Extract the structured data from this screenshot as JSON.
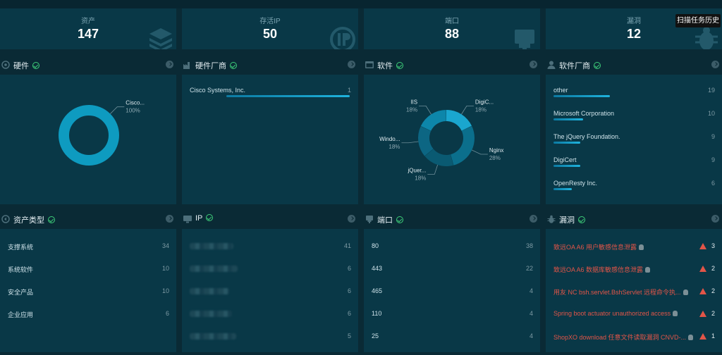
{
  "stats": [
    {
      "label": "资产",
      "value": "147",
      "icon": "layers-icon"
    },
    {
      "label": "存活IP",
      "value": "50",
      "icon": "ip-icon"
    },
    {
      "label": "端口",
      "value": "88",
      "icon": "port-icon"
    },
    {
      "label": "漏洞",
      "value": "12",
      "icon": "bug-icon"
    }
  ],
  "tooltip": "扫描任务历史",
  "panels": {
    "hardware": {
      "title": "硬件"
    },
    "hardware_vendor": {
      "title": "硬件厂商"
    },
    "software": {
      "title": "软件"
    },
    "software_vendor": {
      "title": "软件厂商"
    },
    "asset_type": {
      "title": "资产类型"
    },
    "ip": {
      "title": "IP"
    },
    "port": {
      "title": "端口"
    },
    "vuln": {
      "title": "漏洞"
    }
  },
  "hardware_chart": {
    "type": "donut",
    "slices": [
      {
        "label": "Cisco...",
        "value": 100,
        "value_label": "100%"
      }
    ],
    "colors": [
      "#0e9bc0"
    ]
  },
  "hardware_vendor_list": [
    {
      "label": "Cisco Systems, Inc.",
      "value": "1",
      "fraction": 1.0
    }
  ],
  "software_chart": {
    "type": "donut",
    "slices": [
      {
        "label": "DigiC...",
        "value": 18,
        "value_label": "18%"
      },
      {
        "label": "Nginx",
        "value": 28,
        "value_label": "28%"
      },
      {
        "label": "jQuer...",
        "value": 18,
        "value_label": "18%"
      },
      {
        "label": "Windo...",
        "value": 18,
        "value_label": "18%"
      },
      {
        "label": "IIS",
        "value": 18,
        "value_label": "18%"
      }
    ],
    "colors": [
      "#1aa6cf",
      "#0b6f8c",
      "#0a5a72",
      "#0c6683",
      "#0d86aa"
    ]
  },
  "software_vendor_list": [
    {
      "label": "other",
      "value": "19",
      "fraction": 1.0
    },
    {
      "label": "Microsoft Corporation",
      "value": "10",
      "fraction": 0.53
    },
    {
      "label": "The jQuery Foundation.",
      "value": "9",
      "fraction": 0.47
    },
    {
      "label": "DigiCert",
      "value": "9",
      "fraction": 0.47
    },
    {
      "label": "OpenResty Inc.",
      "value": "6",
      "fraction": 0.32
    }
  ],
  "asset_type_list": [
    {
      "label": "支撑系统",
      "value": "34"
    },
    {
      "label": "系统软件",
      "value": "10"
    },
    {
      "label": "安全产品",
      "value": "10"
    },
    {
      "label": "企业应用",
      "value": "6"
    }
  ],
  "ip_list": [
    {
      "value": "41"
    },
    {
      "value": "6"
    },
    {
      "value": "6"
    },
    {
      "value": "6"
    },
    {
      "value": "5"
    }
  ],
  "port_list": [
    {
      "label": "80",
      "value": "38"
    },
    {
      "label": "443",
      "value": "22"
    },
    {
      "label": "465",
      "value": "4"
    },
    {
      "label": "110",
      "value": "4"
    },
    {
      "label": "25",
      "value": "4"
    }
  ],
  "vuln_list": [
    {
      "label": "致远OA A6 用户敏感信息泄露",
      "value": "3"
    },
    {
      "label": "致远OA A6 数据库敏感信息泄露",
      "value": "2"
    },
    {
      "label": "用友 NC bsh.servlet.BshServlet 远程命令执...",
      "value": "2"
    },
    {
      "label": "Spring boot actuator unauthorized access",
      "value": "2"
    },
    {
      "label": "ShopXO download 任意文件读取漏洞 CNVD-...",
      "value": "1"
    }
  ],
  "colors": {
    "accent": "#1fb3dd",
    "ok": "#3ecf7a",
    "danger": "#e25548",
    "panel": "#093847",
    "background": "#0a2a35"
  }
}
